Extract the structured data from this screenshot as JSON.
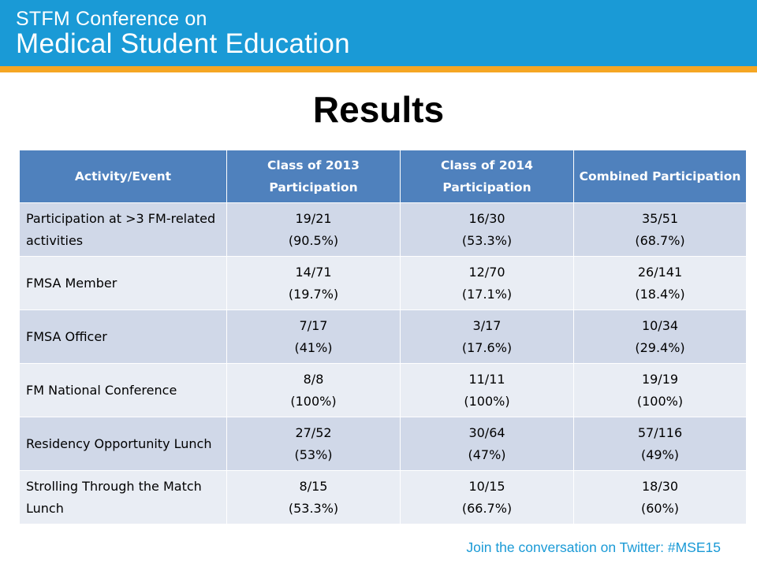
{
  "header": {
    "line1": "STFM Conference on",
    "line2": "Medical Student Education"
  },
  "title": "Results",
  "table": {
    "headers": [
      "Activity/Event",
      "Class of 2013 Participation",
      "Class of 2014 Participation",
      "Combined Participation"
    ],
    "rows": [
      {
        "activity": "Participation at >3 FM-related activities",
        "c2013": {
          "ratio": "19/21",
          "pct": "(90.5%)"
        },
        "c2014": {
          "ratio": "16/30",
          "pct": "(53.3%)"
        },
        "combined": {
          "ratio": "35/51",
          "pct": "(68.7%)"
        }
      },
      {
        "activity": "FMSA Member",
        "c2013": {
          "ratio": "14/71",
          "pct": "(19.7%)"
        },
        "c2014": {
          "ratio": "12/70",
          "pct": "(17.1%)"
        },
        "combined": {
          "ratio": "26/141",
          "pct": "(18.4%)"
        }
      },
      {
        "activity": "FMSA Officer",
        "c2013": {
          "ratio": "7/17",
          "pct": "(41%)"
        },
        "c2014": {
          "ratio": "3/17",
          "pct": "(17.6%)"
        },
        "combined": {
          "ratio": "10/34",
          "pct": "(29.4%)"
        }
      },
      {
        "activity": "FM National Conference",
        "c2013": {
          "ratio": "8/8",
          "pct": "(100%)"
        },
        "c2014": {
          "ratio": "11/11",
          "pct": "(100%)"
        },
        "combined": {
          "ratio": "19/19",
          "pct": "(100%)"
        }
      },
      {
        "activity": "Residency Opportunity Lunch",
        "c2013": {
          "ratio": "27/52",
          "pct": "(53%)"
        },
        "c2014": {
          "ratio": "30/64",
          "pct": "(47%)"
        },
        "combined": {
          "ratio": "57/116",
          "pct": "(49%)"
        }
      },
      {
        "activity": "Strolling Through the Match Lunch",
        "c2013": {
          "ratio": "8/15",
          "pct": "(53.3%)"
        },
        "c2014": {
          "ratio": "10/15",
          "pct": "(66.7%)"
        },
        "combined": {
          "ratio": "18/30",
          "pct": "(60%)"
        }
      }
    ]
  },
  "footer": "Join the conversation on Twitter: #MSE15",
  "colors": {
    "banner": "#1a9ad6",
    "stripe": "#f5a623",
    "table_header": "#4f81bd",
    "row_dark": "#d0d8e8",
    "row_light": "#e9edf4"
  }
}
